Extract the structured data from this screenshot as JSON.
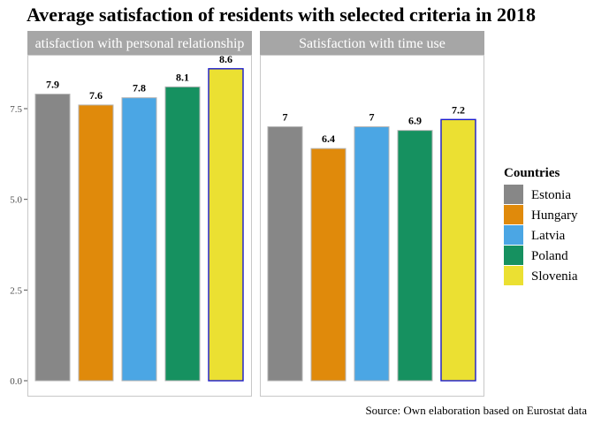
{
  "chart_data": {
    "type": "bar",
    "title": "Average satisfaction of residents with selected criteria in 2018",
    "caption": "Source: Own elaboration based on Eurostat data",
    "ylim": [
      0,
      8.8
    ],
    "yticks": [
      0.0,
      2.5,
      5.0,
      7.5
    ],
    "ytick_labels": [
      "0.0",
      "2.5",
      "5.0",
      "7.5"
    ],
    "categories": [
      "Estonia",
      "Hungary",
      "Latvia",
      "Poland",
      "Slovenia"
    ],
    "colors": {
      "Estonia": "#878787",
      "Hungary": "#e08a0b",
      "Latvia": "#4ba6e4",
      "Poland": "#169160",
      "Slovenia": "#ebe032"
    },
    "highlight": {
      "category": "Slovenia",
      "outline": "#1a1acc"
    },
    "panels": [
      {
        "strip_label": "atisfaction with personal relationship",
        "values": [
          7.9,
          7.6,
          7.8,
          8.1,
          8.6
        ],
        "labels": [
          "7.9",
          "7.6",
          "7.8",
          "8.1",
          "8.6"
        ]
      },
      {
        "strip_label": "Satisfaction with time use",
        "values": [
          7.0,
          6.4,
          7.0,
          6.9,
          7.2
        ],
        "labels": [
          "7",
          "6.4",
          "7",
          "6.9",
          "7.2"
        ]
      }
    ],
    "legend": {
      "title": "Countries",
      "placement": "right",
      "entries": [
        "Estonia",
        "Hungary",
        "Latvia",
        "Poland",
        "Slovenia"
      ]
    },
    "grid": false
  }
}
